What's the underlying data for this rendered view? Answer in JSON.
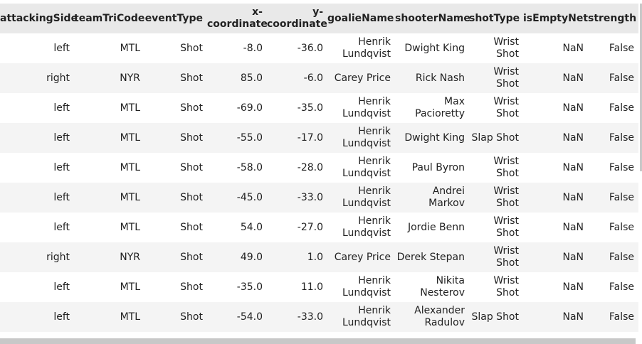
{
  "table": {
    "columns": [
      "attackingSide",
      "teamTriCode",
      "eventType",
      "x-\ncoordinate",
      "y-\ncoordinate",
      "goalieName",
      "shooterName",
      "shotType",
      "isEmptyNet",
      "strength"
    ],
    "rows": [
      [
        "left",
        "MTL",
        "Shot",
        "-8.0",
        "-36.0",
        "Henrik\nLundqvist",
        "Dwight King",
        "Wrist\nShot",
        "NaN",
        "False"
      ],
      [
        "right",
        "NYR",
        "Shot",
        "85.0",
        "-6.0",
        "Carey Price",
        "Rick Nash",
        "Wrist\nShot",
        "NaN",
        "False"
      ],
      [
        "left",
        "MTL",
        "Shot",
        "-69.0",
        "-35.0",
        "Henrik\nLundqvist",
        "Max\nPacioretty",
        "Wrist\nShot",
        "NaN",
        "False"
      ],
      [
        "left",
        "MTL",
        "Shot",
        "-55.0",
        "-17.0",
        "Henrik\nLundqvist",
        "Dwight King",
        "Slap Shot",
        "NaN",
        "False"
      ],
      [
        "left",
        "MTL",
        "Shot",
        "-58.0",
        "-28.0",
        "Henrik\nLundqvist",
        "Paul Byron",
        "Wrist\nShot",
        "NaN",
        "False"
      ],
      [
        "left",
        "MTL",
        "Shot",
        "-45.0",
        "-33.0",
        "Henrik\nLundqvist",
        "Andrei\nMarkov",
        "Wrist\nShot",
        "NaN",
        "False"
      ],
      [
        "left",
        "MTL",
        "Shot",
        "54.0",
        "-27.0",
        "Henrik\nLundqvist",
        "Jordie Benn",
        "Wrist\nShot",
        "NaN",
        "False"
      ],
      [
        "right",
        "NYR",
        "Shot",
        "49.0",
        "1.0",
        "Carey Price",
        "Derek Stepan",
        "Wrist\nShot",
        "NaN",
        "False"
      ],
      [
        "left",
        "MTL",
        "Shot",
        "-35.0",
        "11.0",
        "Henrik\nLundqvist",
        "Nikita\nNesterov",
        "Wrist\nShot",
        "NaN",
        "False"
      ],
      [
        "left",
        "MTL",
        "Shot",
        "-54.0",
        "-33.0",
        "Henrik\nLundqvist",
        "Alexander\nRadulov",
        "Slap Shot",
        "NaN",
        "False"
      ]
    ]
  }
}
